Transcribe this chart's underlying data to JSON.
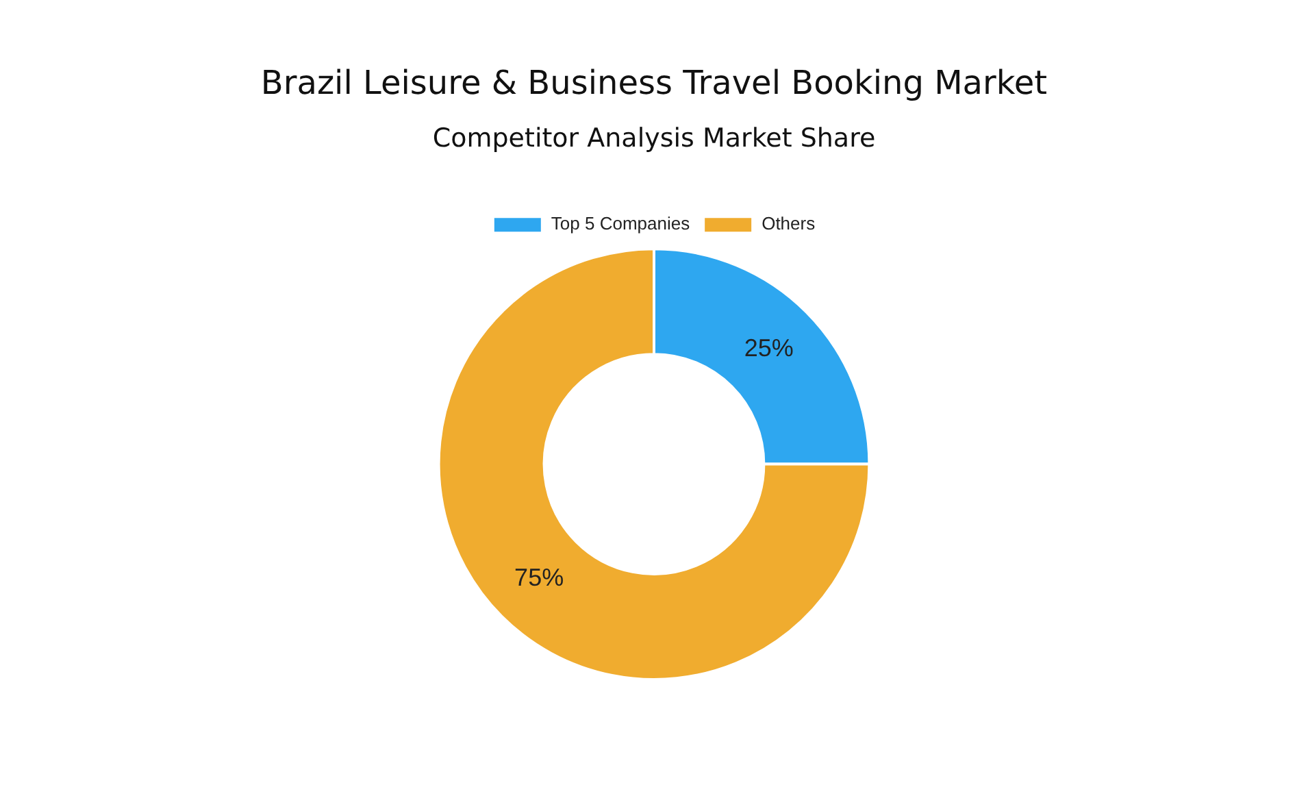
{
  "chart_data": {
    "type": "donut",
    "title": "Brazil Leisure & Business Travel Booking Market",
    "subtitle": "Competitor Analysis Market Share",
    "categories": [
      "Top 5 Companies",
      "Others"
    ],
    "values": [
      25,
      75
    ],
    "colors": [
      "#2ea7f0",
      "#f0ac2f"
    ],
    "value_labels": [
      "25%",
      "75%"
    ],
    "legend": "top"
  }
}
